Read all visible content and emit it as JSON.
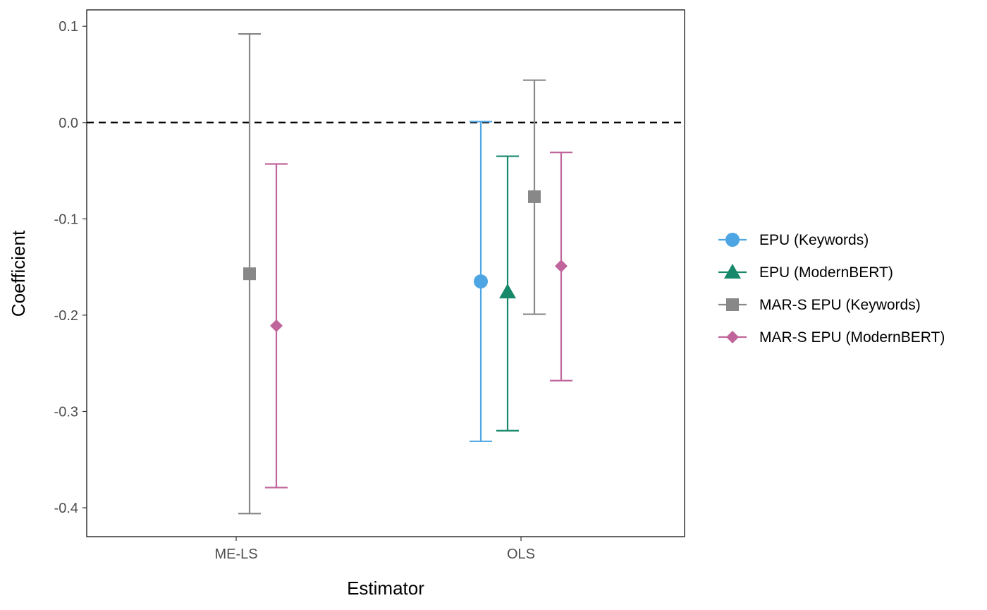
{
  "chart_data": {
    "type": "errorbar",
    "xlabel": "Estimator",
    "ylabel": "Coefficient",
    "categories": [
      "ME-LS",
      "OLS"
    ],
    "ylim": [
      -0.43,
      0.117
    ],
    "yticks": [
      0.1,
      0.0,
      -0.1,
      -0.2,
      -0.3,
      -0.4
    ],
    "ytick_labels": [
      "0.1",
      "0.0",
      "-0.1",
      "-0.2",
      "-0.3",
      "-0.4"
    ],
    "reference_line": {
      "y": 0,
      "style": "dashed"
    },
    "legend_position": "right",
    "series": [
      {
        "name": "EPU (Keywords)",
        "color": "#4DA6E3",
        "shape": "circle",
        "points": [
          {
            "category": "OLS",
            "estimate": -0.165,
            "lower": -0.331,
            "upper": 0.001
          }
        ]
      },
      {
        "name": "EPU (ModernBERT)",
        "color": "#17896A",
        "shape": "triangle",
        "points": [
          {
            "category": "OLS",
            "estimate": -0.176,
            "lower": -0.32,
            "upper": -0.035
          }
        ]
      },
      {
        "name": "MAR-S EPU (Keywords)",
        "color": "#888888",
        "shape": "square",
        "points": [
          {
            "category": "ME-LS",
            "estimate": -0.157,
            "lower": -0.406,
            "upper": 0.092
          },
          {
            "category": "OLS",
            "estimate": -0.077,
            "lower": -0.199,
            "upper": 0.044
          }
        ]
      },
      {
        "name": "MAR-S EPU (ModernBERT)",
        "color": "#C0659B",
        "shape": "diamond",
        "points": [
          {
            "category": "ME-LS",
            "estimate": -0.211,
            "lower": -0.379,
            "upper": -0.043
          },
          {
            "category": "OLS",
            "estimate": -0.149,
            "lower": -0.268,
            "upper": -0.031
          }
        ]
      }
    ]
  }
}
